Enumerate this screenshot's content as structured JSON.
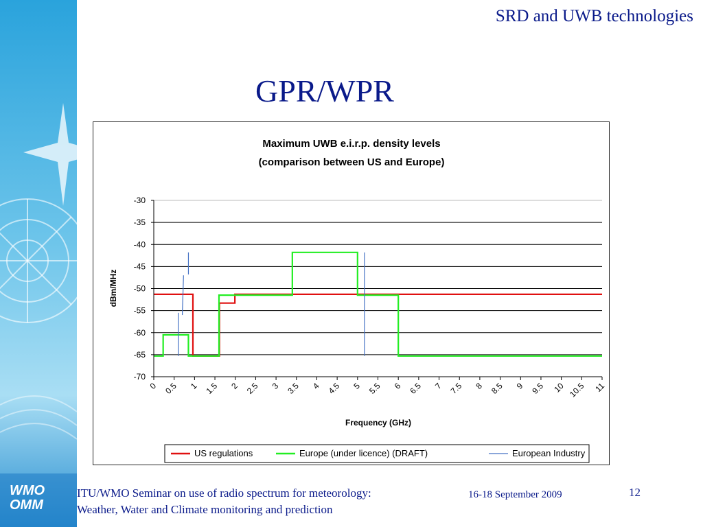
{
  "header": {
    "title": "SRD and UWB technologies"
  },
  "slide": {
    "title": "GPR/WPR"
  },
  "logo": {
    "line1": "WMO",
    "line2": "OMM"
  },
  "footer": {
    "line1": "ITU/WMO Seminar on use of radio spectrum for meteorology:",
    "line2": "Weather, Water and Climate monitoring and prediction",
    "date": "16-18 September 2009",
    "page": "12"
  },
  "colors": {
    "text_blue": "#0a1a8a",
    "us": "#e01010",
    "europe": "#22ee22",
    "industry": "#4472c4"
  },
  "chart_data": {
    "type": "line",
    "title": "Maximum UWB e.i.r.p. density levels",
    "subtitle": "(comparison between US and Europe)",
    "xlabel": "Frequency (GHz)",
    "ylabel": "dBm/MHz",
    "x_ticks": [
      "0",
      "0.5",
      "1",
      "1.5",
      "2",
      "2.5",
      "3",
      "3.5",
      "4",
      "4.5",
      "5",
      "5.5",
      "6",
      "6.5",
      "7",
      "7.5",
      "8",
      "8.5",
      "9",
      "9.5",
      "10",
      "10.5",
      "11"
    ],
    "y_ticks": [
      "-30",
      "-35",
      "-40",
      "-45",
      "-50",
      "-55",
      "-60",
      "-65",
      "-70"
    ],
    "xlim": [
      0,
      11
    ],
    "ylim": [
      -70,
      -30
    ],
    "grid": "horizontal",
    "legend_position": "bottom",
    "series": [
      {
        "name": "US regulations",
        "color": "#e01010",
        "x": [
          0,
          0.96,
          0.96,
          1.61,
          1.61,
          1.99,
          1.99,
          10.6,
          11
        ],
        "y": [
          -51.3,
          -51.3,
          -65.3,
          -65.3,
          -53.3,
          -53.3,
          -51.3,
          -51.3,
          -51.3
        ]
      },
      {
        "name": "Europe (under licence) (DRAFT)",
        "color": "#22ee22",
        "x": [
          0,
          0.23,
          0.23,
          0.85,
          0.85,
          1.6,
          1.6,
          3.4,
          3.4,
          5.0,
          5.0,
          6.0,
          6.0,
          11
        ],
        "y": [
          -65.3,
          -65.3,
          -60.5,
          -60.5,
          -65.3,
          -65.3,
          -51.5,
          -51.5,
          -41.8,
          -41.8,
          -51.5,
          -51.5,
          -65.3,
          -65.3
        ]
      },
      {
        "name": "European Industry",
        "color": "#4472c4",
        "segments": [
          {
            "x": [
              0.6,
              0.6
            ],
            "y": [
              -65.3,
              -55.5
            ]
          },
          {
            "x": [
              0.7,
              0.73
            ],
            "y": [
              -56,
              -47
            ]
          },
          {
            "x": [
              0.85,
              0.85
            ],
            "y": [
              -46.8,
              -41.8
            ]
          },
          {
            "x": [
              5.17,
              5.17
            ],
            "y": [
              -65.3,
              -41.8
            ]
          }
        ]
      }
    ]
  }
}
